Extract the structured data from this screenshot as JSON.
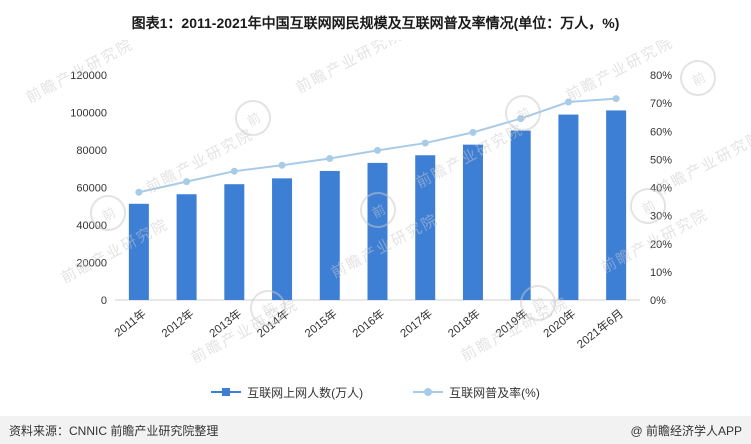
{
  "title": "图表1：2011-2021年中国互联网网民规模及互联网普及率情况(单位：万人，%)",
  "watermark_text": "前瞻产业研究院",
  "footer": {
    "source": "资料来源：CNNIC 前瞻产业研究院整理",
    "brand": "@ 前瞻经济学人APP"
  },
  "chart_data": {
    "type": "bar+line",
    "title": "图表1：2011-2021年中国互联网网民规模及互联网普及率情况(单位：万人，%)",
    "categories": [
      "2011年",
      "2012年",
      "2013年",
      "2014年",
      "2015年",
      "2016年",
      "2017年",
      "2018年",
      "2019年",
      "2020年",
      "2021年6月"
    ],
    "series": [
      {
        "name": "互联网上网人数(万人)",
        "type": "bar",
        "axis": "left",
        "color": "#3E7FD6",
        "values": [
          51310,
          56400,
          61758,
          64875,
          68826,
          73125,
          77198,
          82851,
          90359,
          98899,
          101100
        ]
      },
      {
        "name": "互联网普及率(%)",
        "type": "line",
        "axis": "right",
        "color": "#A8CBE8",
        "values": [
          38.3,
          42.1,
          45.8,
          47.9,
          50.3,
          53.2,
          55.8,
          59.6,
          64.5,
          70.4,
          71.6
        ]
      }
    ],
    "left_axis": {
      "min": 0,
      "max": 120000,
      "step": 20000,
      "tick_labels": [
        "0",
        "20000",
        "40000",
        "60000",
        "80000",
        "100000",
        "120000"
      ]
    },
    "right_axis": {
      "min": 0,
      "max": 80,
      "step": 10,
      "tick_labels": [
        "0%",
        "10%",
        "20%",
        "30%",
        "40%",
        "50%",
        "60%",
        "70%",
        "80%"
      ]
    },
    "grid": false,
    "legend_position": "bottom"
  }
}
